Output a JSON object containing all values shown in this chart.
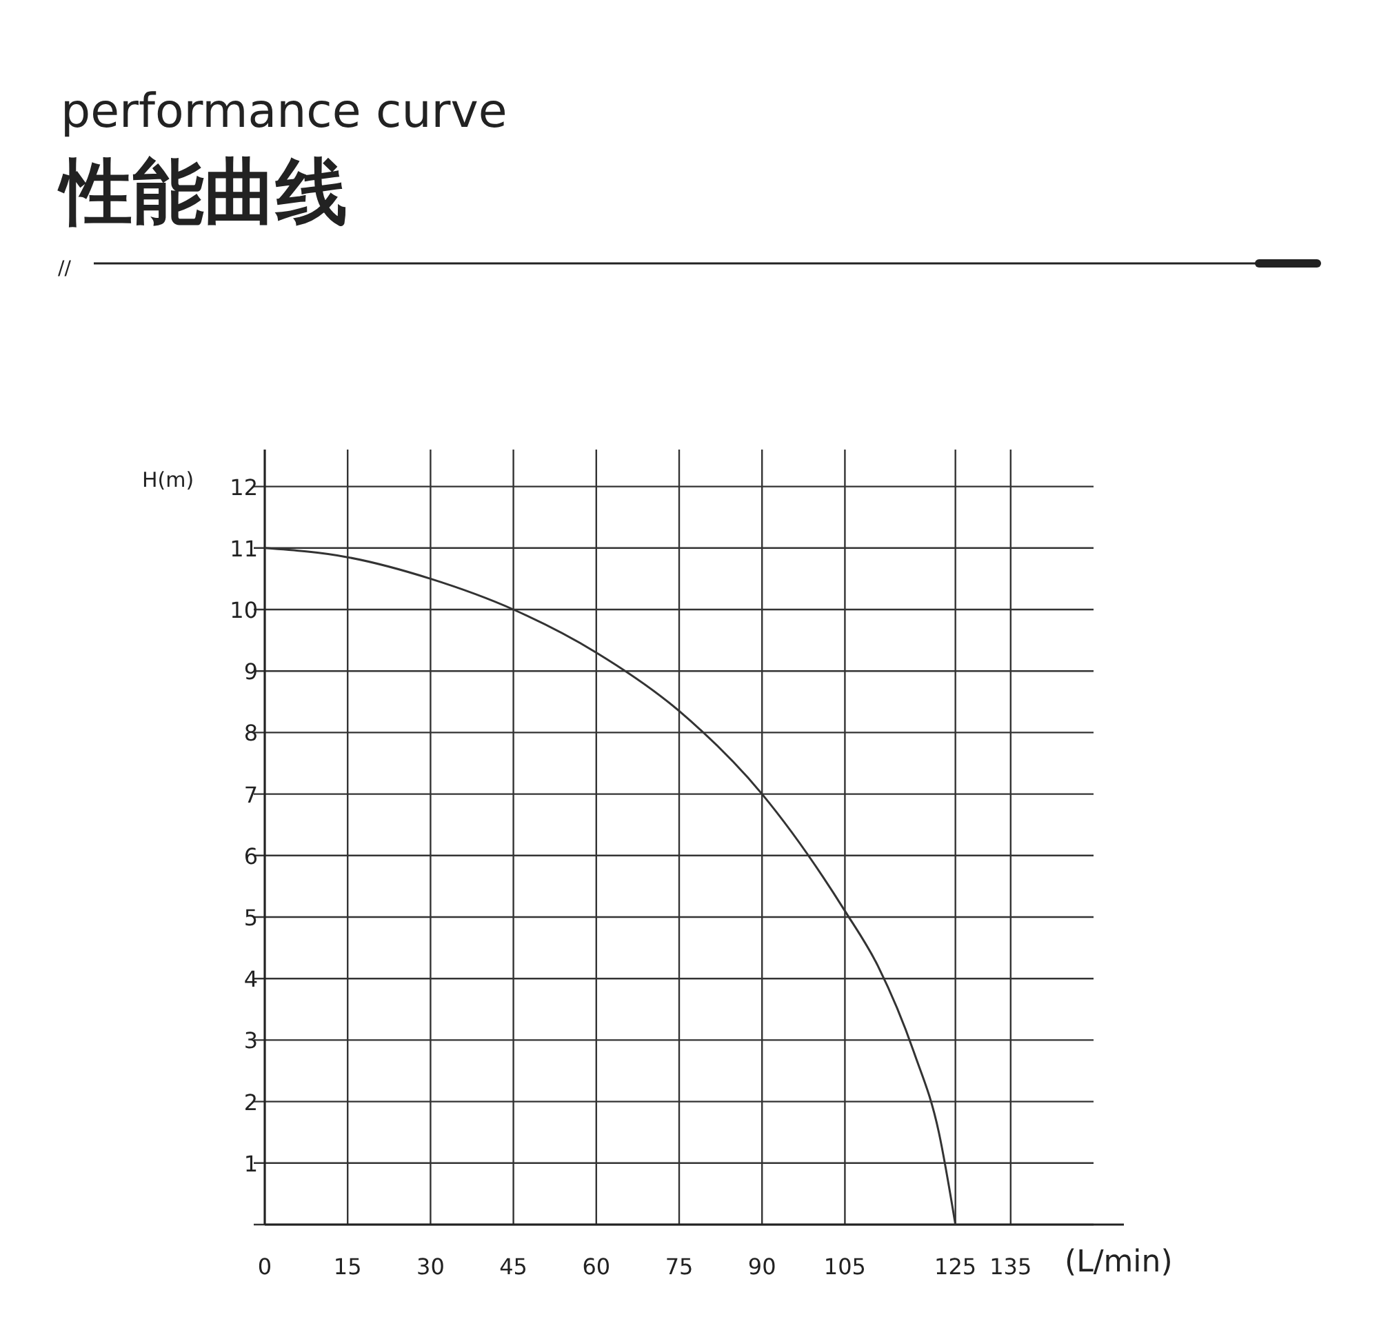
{
  "chart_data": {
    "type": "line",
    "title": "performance curve",
    "subtitle": "性能曲线",
    "annotations": [
      "//"
    ],
    "xlabel": "(L/min)",
    "ylabel": "H(m)",
    "x": [
      0,
      15,
      30,
      45,
      60,
      75,
      90,
      105,
      111,
      117.5,
      122,
      125
    ],
    "values": [
      11,
      10.85,
      10.5,
      10,
      9.3,
      8.35,
      7,
      5.1,
      4.2,
      2.8,
      1.5,
      0
    ],
    "color": "#333333",
    "xlim": [
      0,
      150
    ],
    "xticks": [
      0,
      15,
      30,
      45,
      60,
      75,
      90,
      105,
      125,
      135
    ],
    "ylim": [
      0,
      12.6
    ],
    "yticks": [
      {
        "value": 0,
        "label": null
      },
      1,
      2,
      3,
      4,
      5,
      6,
      7,
      8,
      9,
      10,
      11,
      12
    ],
    "grid": true,
    "marker": "none",
    "line_style": "solid"
  }
}
